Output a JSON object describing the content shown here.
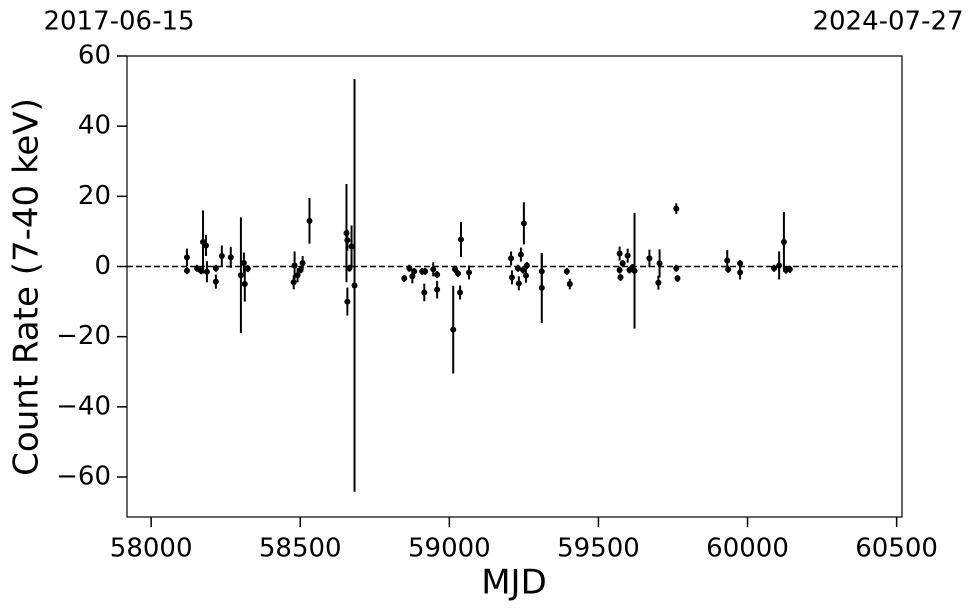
{
  "chart_data": {
    "type": "errorbar",
    "x_label": "MJD",
    "y_label": "Count Rate (7-40 keV)",
    "top_axis_labels": [
      "2017-06-15",
      "2024-07-27"
    ],
    "xlim": [
      57919,
      60518
    ],
    "ylim": [
      -71.4,
      60
    ],
    "xticks": [
      58000,
      58500,
      59000,
      59500,
      60000,
      60500
    ],
    "yticks": [
      {
        "value": -60,
        "label": "−60"
      },
      {
        "value": -40,
        "label": "−40"
      },
      {
        "value": -20,
        "label": "−20"
      },
      0,
      20,
      40,
      60
    ],
    "reference_line": 0,
    "series": [
      {
        "color": "#000000",
        "x": [
          58120,
          58120,
          58154,
          58167,
          58174,
          58184,
          58187,
          58217,
          58217,
          58237,
          58267,
          58301,
          58311,
          58314,
          58324,
          58478,
          58481,
          58491,
          58501,
          58508,
          58531,
          58655,
          58658,
          58658,
          58665,
          58672,
          58682,
          58849,
          58866,
          58876,
          58882,
          58909,
          58916,
          58919,
          58946,
          58959,
          58959,
          59013,
          59019,
          59029,
          59036,
          59039,
          59066,
          59207,
          59210,
          59230,
          59233,
          59240,
          59247,
          59250,
          59257,
          59260,
          59310,
          59310,
          59394,
          59404,
          59571,
          59571,
          59574,
          59581,
          59598,
          59604,
          59614,
          59621,
          59671,
          59701,
          59705,
          59761,
          59761,
          59765,
          59932,
          59935,
          59975,
          59975,
          60089,
          60106,
          60122,
          60129,
          60142
        ],
        "values": [
          2.6,
          -1.2,
          -0.5,
          -1.2,
          7,
          6,
          -1.5,
          -4.3,
          -0.5,
          3,
          2.6,
          -2.5,
          1,
          -5,
          -0.6,
          -4.5,
          0.3,
          -2.5,
          -1,
          1,
          13,
          9.5,
          7.5,
          -10,
          -0.5,
          5.7,
          -5.4,
          -3.4,
          -0.5,
          -2.8,
          -1.4,
          -1.4,
          -7.4,
          -1.4,
          -0.8,
          -2.3,
          -6.6,
          -18,
          -0.8,
          -2,
          -7.4,
          7.7,
          -1.7,
          2.3,
          -3.1,
          -0.5,
          -4.8,
          3.4,
          -1,
          12.3,
          -2.6,
          0.3,
          -6.1,
          -1.4,
          -1.4,
          -5,
          3.7,
          -1,
          -3.1,
          0.9,
          3.1,
          -1,
          -0.3,
          -1.2,
          2.3,
          -4.6,
          0.9,
          16.5,
          -0.5,
          -3.4,
          1.7,
          -0.8,
          0.9,
          -1.7,
          -0.5,
          0.3,
          7,
          -1,
          -0.8
        ],
        "errors": [
          2.5,
          1,
          1,
          1,
          9,
          3,
          3,
          2,
          1,
          3,
          3,
          16.5,
          3,
          5,
          1,
          2,
          4,
          2,
          1,
          2,
          6.5,
          14,
          3,
          4,
          1,
          6,
          58.8,
          1,
          1,
          2,
          1,
          1,
          2.5,
          1,
          2,
          1,
          2.5,
          12.5,
          1,
          1,
          2,
          5,
          2,
          2,
          2,
          1,
          2,
          2,
          1,
          6,
          2,
          1,
          10,
          5,
          1,
          1.5,
          2,
          1,
          1,
          1,
          2,
          1,
          1,
          16.5,
          2.5,
          2,
          4,
          1.5,
          1,
          1,
          3,
          1,
          1,
          2,
          1,
          4,
          8.5,
          1,
          1
        ]
      }
    ]
  }
}
